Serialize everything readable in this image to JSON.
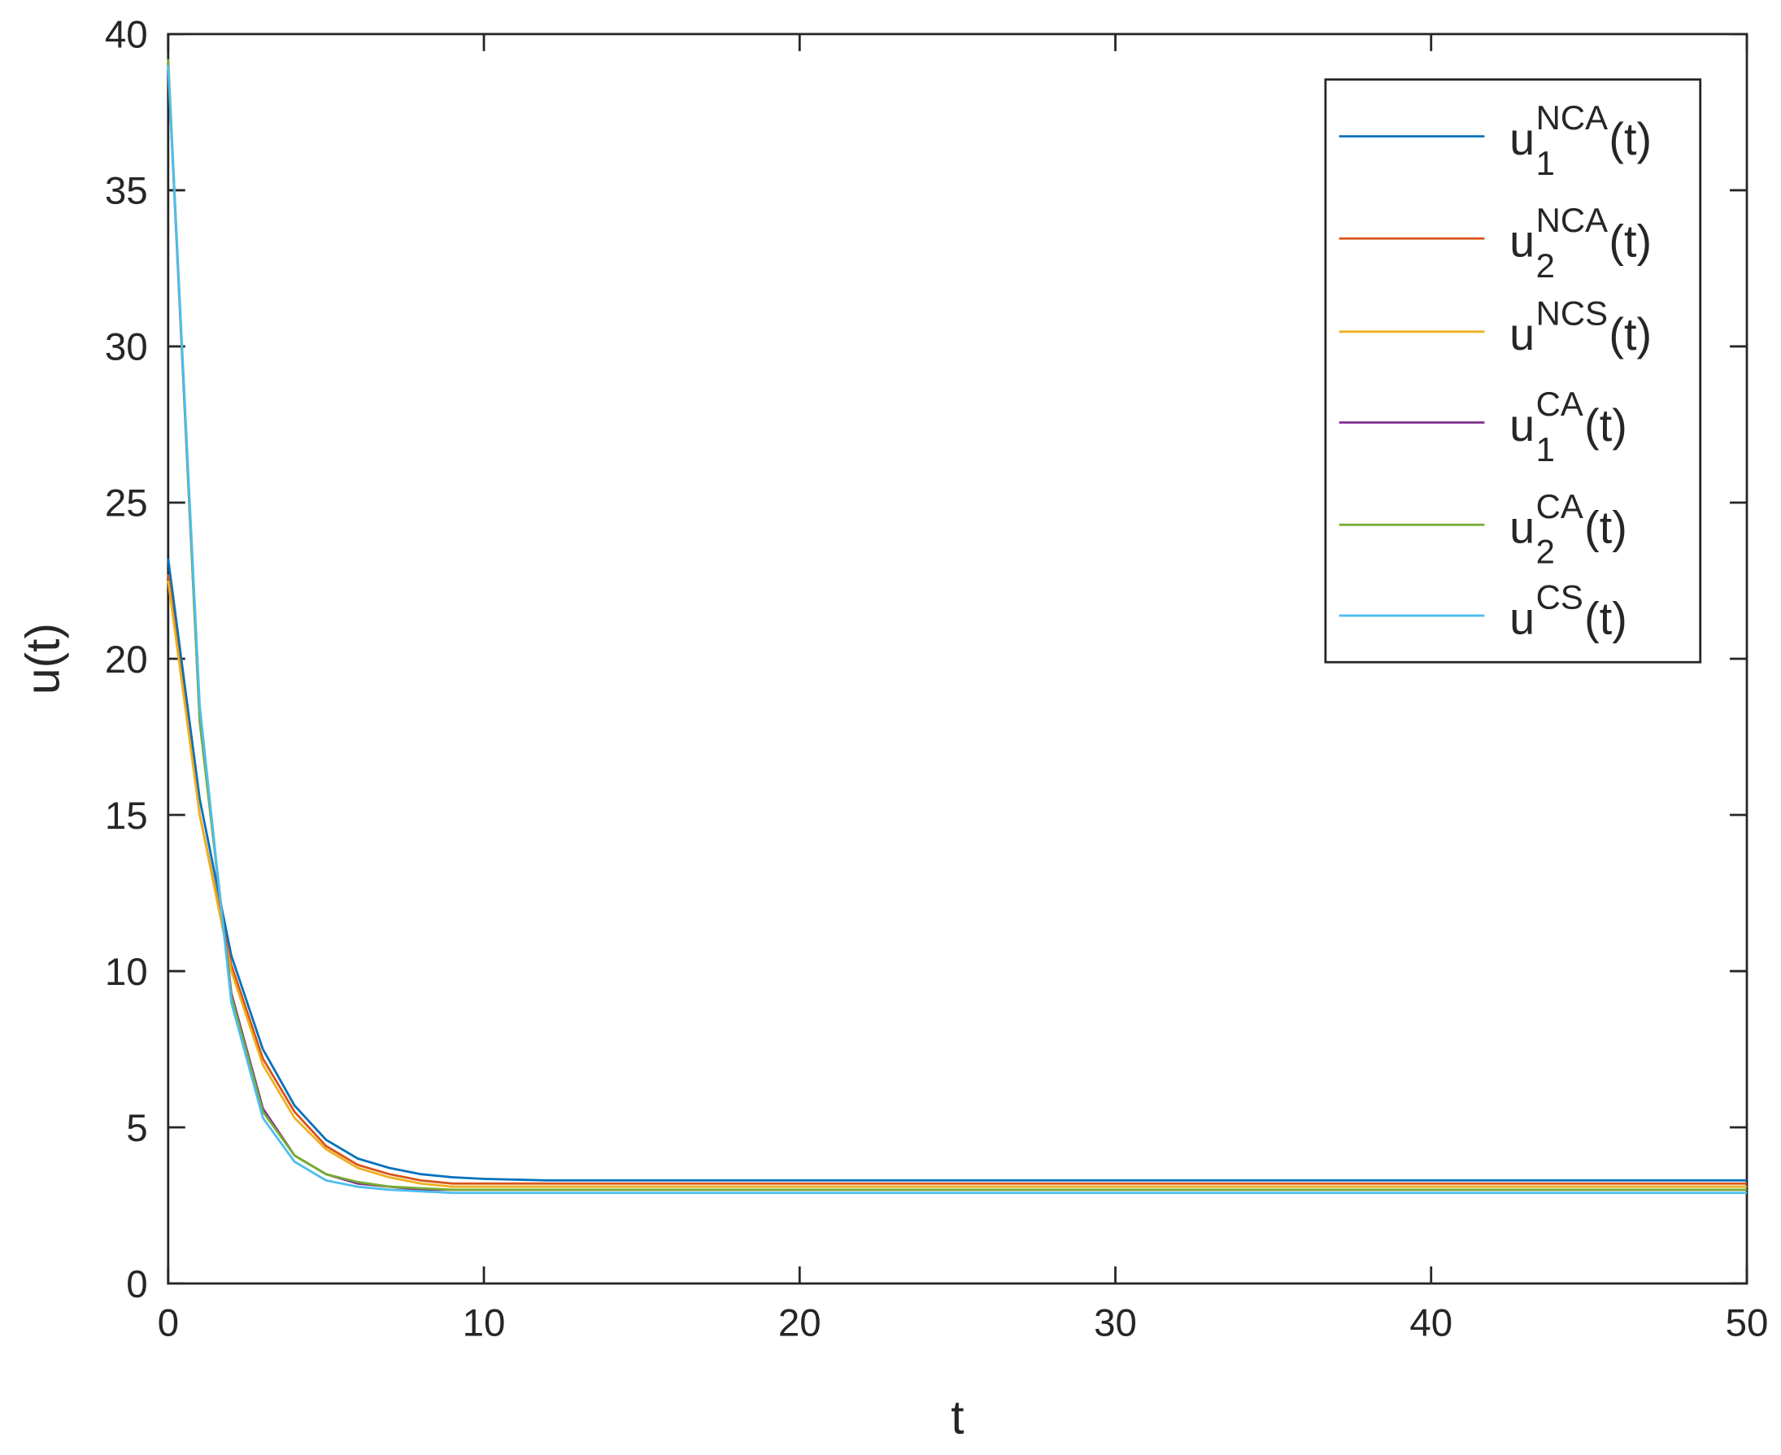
{
  "chart_data": {
    "type": "line",
    "xlabel": "t",
    "ylabel": "u(t)",
    "xlim": [
      0,
      50
    ],
    "ylim": [
      0,
      40
    ],
    "xticks": [
      0,
      10,
      20,
      30,
      40,
      50
    ],
    "yticks": [
      0,
      5,
      10,
      15,
      20,
      25,
      30,
      35,
      40
    ],
    "legend": "upper right",
    "x": [
      0,
      1,
      2,
      3,
      4,
      5,
      6,
      7,
      8,
      9,
      10,
      12,
      15,
      20,
      30,
      40,
      50
    ],
    "series": [
      {
        "name": {
          "base": "u",
          "sub": "1",
          "sup": "NCA",
          "rest": "(t)"
        },
        "color": "#0072BD",
        "values": [
          23.2,
          15.5,
          10.5,
          7.5,
          5.7,
          4.6,
          4.0,
          3.7,
          3.5,
          3.4,
          3.35,
          3.3,
          3.3,
          3.3,
          3.3,
          3.3,
          3.3
        ]
      },
      {
        "name": {
          "base": "u",
          "sub": "2",
          "sup": "NCA",
          "rest": "(t)"
        },
        "color": "#D95319",
        "values": [
          22.7,
          15.0,
          10.2,
          7.2,
          5.5,
          4.4,
          3.8,
          3.5,
          3.3,
          3.2,
          3.2,
          3.2,
          3.2,
          3.2,
          3.2,
          3.2,
          3.2
        ]
      },
      {
        "name": {
          "base": "u",
          "sup": "NCS",
          "rest": "(t)"
        },
        "color": "#EDB120",
        "values": [
          22.5,
          15.0,
          10.0,
          7.0,
          5.3,
          4.3,
          3.7,
          3.4,
          3.2,
          3.1,
          3.1,
          3.1,
          3.1,
          3.1,
          3.1,
          3.1,
          3.1
        ]
      },
      {
        "name": {
          "base": "u",
          "sub": "1",
          "sup": "CA",
          "rest": "(t)"
        },
        "color": "#7E2F8E",
        "values": [
          39.0,
          18.0,
          9.3,
          5.6,
          4.1,
          3.5,
          3.2,
          3.1,
          3.0,
          3.0,
          3.0,
          3.0,
          3.0,
          3.0,
          3.0,
          3.0,
          3.0
        ]
      },
      {
        "name": {
          "base": "u",
          "sub": "2",
          "sup": "CA",
          "rest": "(t)"
        },
        "color": "#77AC30",
        "values": [
          39.2,
          18.0,
          9.2,
          5.5,
          4.1,
          3.5,
          3.25,
          3.1,
          3.05,
          3.0,
          3.0,
          3.0,
          3.0,
          3.0,
          3.0,
          3.0,
          3.0
        ]
      },
      {
        "name": {
          "base": "u",
          "sup": "CS",
          "rest": "(t)"
        },
        "color": "#4DBEEE",
        "values": [
          39.0,
          18.5,
          9.0,
          5.3,
          3.9,
          3.3,
          3.1,
          3.0,
          2.95,
          2.9,
          2.9,
          2.9,
          2.9,
          2.9,
          2.9,
          2.9,
          2.9
        ]
      }
    ]
  }
}
